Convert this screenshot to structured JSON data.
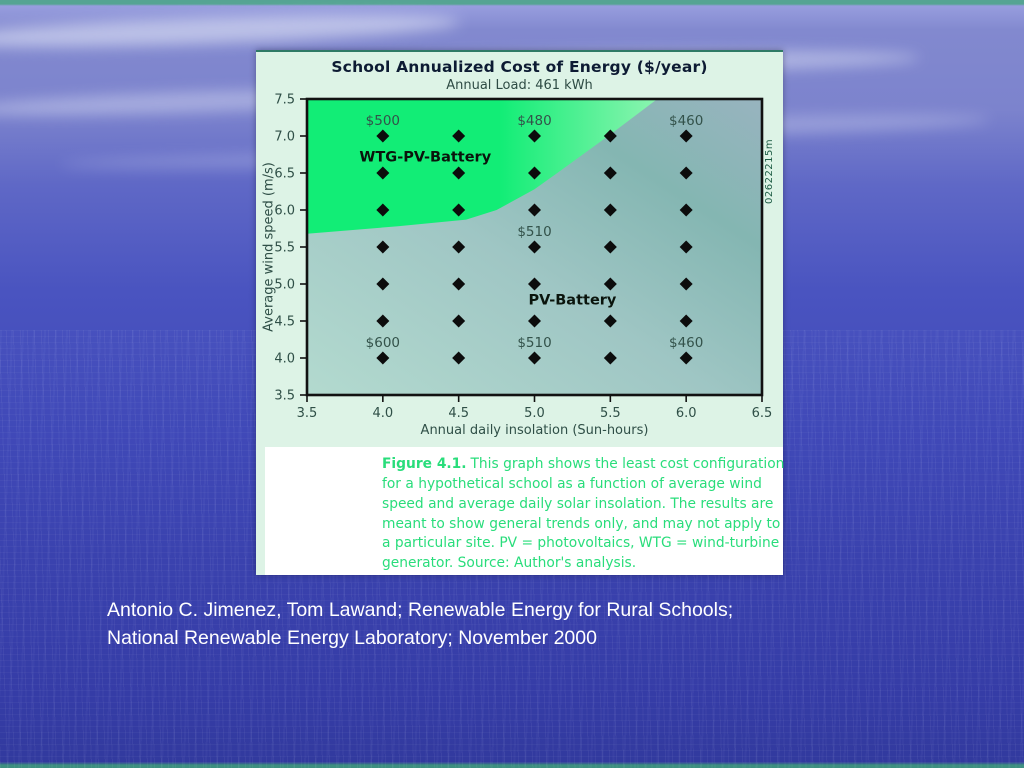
{
  "figure": {
    "title": "School Annualized Cost of Energy ($/year)",
    "subtitle": "Annual Load: 461 kWh",
    "watermark": "02622215m",
    "caption_label": "Figure 4.1.",
    "caption_text": "This graph shows the least cost configuration for a hypothetical school as a function of average wind speed and average daily solar insolation. The results are meant to show general trends only, and may not apply to a particular site. PV = photovoltaics, WTG = wind-turbine generator. Source: Author's analysis."
  },
  "citation": {
    "line1": "Antonio C. Jimenez, Tom Lawand; Renewable Energy for Rural Schools;",
    "line2": "National Renewable Energy Laboratory; November 2000"
  },
  "chart_data": {
    "type": "scatter",
    "title": "School Annualized Cost of Energy ($/year)",
    "subtitle": "Annual Load: 461 kWh",
    "xlabel": "Annual daily insolation (Sun-hours)",
    "ylabel": "Average wind speed (m/s)",
    "xlim": [
      3.5,
      6.5
    ],
    "ylim": [
      3.5,
      7.5
    ],
    "xticks": [
      3.5,
      4.0,
      4.5,
      5.0,
      5.5,
      6.0,
      6.5
    ],
    "xtick_labels": [
      "3.5",
      "4.0",
      "4.5",
      "5.0",
      "5.5",
      "6.0",
      "6.5"
    ],
    "yticks": [
      3.5,
      4.0,
      4.5,
      5.0,
      5.5,
      6.0,
      6.5,
      7.0,
      7.5
    ],
    "ytick_labels": [
      "3.5",
      "4.0",
      "4.5",
      "5.0",
      "5.5",
      "6.0",
      "6.5",
      "7.0",
      "7.5"
    ],
    "grid_on": false,
    "point_grid_x": [
      4.0,
      4.5,
      5.0,
      5.5,
      6.0
    ],
    "point_grid_y": [
      4.0,
      4.5,
      5.0,
      5.5,
      6.0,
      6.5,
      7.0
    ],
    "marker": "diamond",
    "marker_color": "#0c0c0c",
    "point_labels": [
      {
        "text": "$500",
        "x": 4.0,
        "y": 7.0
      },
      {
        "text": "$480",
        "x": 5.0,
        "y": 7.0
      },
      {
        "text": "$460",
        "x": 6.0,
        "y": 7.0
      },
      {
        "text": "$510",
        "x": 5.0,
        "y": 5.5
      },
      {
        "text": "$600",
        "x": 4.0,
        "y": 4.0
      },
      {
        "text": "$510",
        "x": 5.0,
        "y": 4.0
      },
      {
        "text": "$460",
        "x": 6.0,
        "y": 4.0
      }
    ],
    "regions": [
      {
        "name": "WTG-PV-Battery",
        "label_x": 4.28,
        "label_y": 6.72,
        "fill": "#1dee7e"
      },
      {
        "name": "PV-Battery",
        "label_x": 5.25,
        "label_y": 4.79,
        "fill": "#9cc2c2"
      }
    ],
    "region_boundary": [
      [
        3.5,
        5.68
      ],
      [
        4.1,
        5.78
      ],
      [
        4.55,
        5.87
      ],
      [
        4.75,
        6.0
      ],
      [
        5.0,
        6.28
      ],
      [
        5.15,
        6.5
      ],
      [
        5.5,
        7.02
      ],
      [
        5.81,
        7.5
      ]
    ],
    "colors": {
      "green_left": "#12ed76",
      "green_right": "#8cf4b0",
      "gray_bottom_left": "#b3dacf",
      "gray_mid": "#9fc6c4",
      "gray_right": "#84b6b2",
      "gray_top_right": "#98b4bf",
      "axis": "#111111",
      "tick_text": "#2f4f47",
      "value_text": "#33524a",
      "region_text": "#0a140c"
    }
  }
}
